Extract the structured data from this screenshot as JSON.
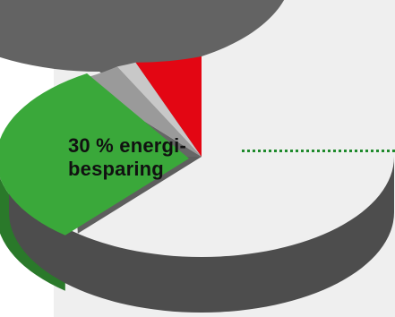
{
  "chart_data": {
    "type": "pie",
    "style": "3d",
    "annotation": {
      "line1": "30 % energi-",
      "line2": "besparing"
    },
    "slices": [
      {
        "value": 30,
        "color": "#3aa83a",
        "highlighted": true
      },
      {
        "value": 10,
        "color": "#e30613"
      },
      {
        "value": 3,
        "color": "#c8c8c8"
      },
      {
        "value": 7,
        "color": "#9a9a9a"
      },
      {
        "value": 25,
        "color": "#666666"
      },
      {
        "value": 25,
        "color": "#5e5e5e"
      }
    ]
  }
}
